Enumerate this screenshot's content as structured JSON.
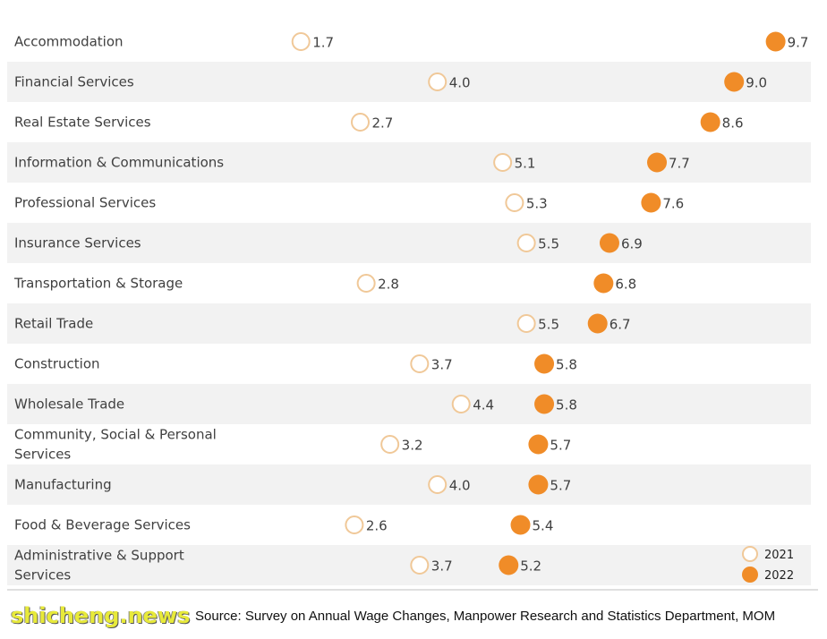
{
  "chart_data": {
    "type": "scatter",
    "categories": [
      "Accommodation",
      "Financial Services",
      "Real Estate Services",
      "Information & Communications",
      "Professional Services",
      "Insurance Services",
      "Transportation & Storage",
      "Retail Trade",
      "Construction",
      "Wholesale Trade",
      "Community, Social & Personal Services",
      "Manufacturing",
      "Food & Beverage Services",
      "Administrative & Support Services"
    ],
    "series": [
      {
        "name": "2021",
        "values": [
          1.7,
          4.0,
          2.7,
          5.1,
          5.3,
          5.5,
          2.8,
          5.5,
          3.7,
          4.4,
          3.2,
          4.0,
          2.6,
          3.7
        ]
      },
      {
        "name": "2022",
        "values": [
          9.7,
          9.0,
          8.6,
          7.7,
          7.6,
          6.9,
          6.8,
          6.7,
          5.8,
          5.8,
          5.7,
          5.7,
          5.4,
          5.2
        ]
      }
    ],
    "category_lines": [
      [
        "Accommodation"
      ],
      [
        "Financial Services"
      ],
      [
        "Real Estate Services"
      ],
      [
        "Information & Communications"
      ],
      [
        "Professional Services"
      ],
      [
        "Insurance Services"
      ],
      [
        "Transportation & Storage"
      ],
      [
        "Retail Trade"
      ],
      [
        "Construction"
      ],
      [
        "Wholesale Trade"
      ],
      [
        "Community, Social & Personal",
        "Services"
      ],
      [
        "Manufacturing"
      ],
      [
        "Food & Beverage Services"
      ],
      [
        "Administrative & Support",
        "Services"
      ]
    ],
    "value_labels": {
      "2021": [
        "1.7",
        "4.0",
        "2.7",
        "5.1",
        "5.3",
        "5.5",
        "2.8",
        "5.5",
        "3.7",
        "4.4",
        "3.2",
        "4.0",
        "2.6",
        "3.7"
      ],
      "2022": [
        "9.7",
        "9.0",
        "8.6",
        "7.7",
        "7.6",
        "6.9",
        "6.8",
        "6.7",
        "5.8",
        "5.8",
        "5.7",
        "5.7",
        "5.4",
        "5.2"
      ]
    },
    "legend": {
      "position": "bottom-right",
      "items": [
        "2021",
        "2022"
      ]
    },
    "colors": {
      "marker_2021_stroke": "#f0c898",
      "marker_2022_fill": "#f08c28",
      "row_band": "#f2f2f2",
      "text": "#404040"
    },
    "grid": false
  },
  "footer": {
    "source": "Source: Survey on Annual Wage Changes, Manpower Research and Statistics Department, MOM",
    "watermark": "shicheng.news"
  }
}
